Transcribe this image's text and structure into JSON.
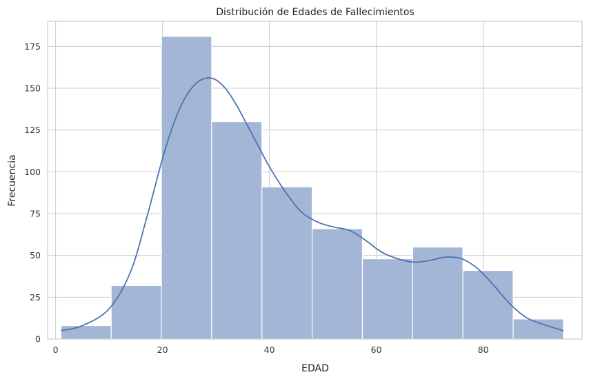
{
  "chart_data": {
    "type": "bar",
    "title": "Distribución de Edades de Fallecimientos",
    "xlabel": "EDAD",
    "ylabel": "Frecuencia",
    "xlim": [
      -1.5,
      98.5
    ],
    "ylim": [
      0,
      190
    ],
    "x_ticks": [
      0,
      20,
      40,
      60,
      80
    ],
    "y_ticks": [
      0,
      25,
      50,
      75,
      100,
      125,
      150,
      175
    ],
    "grid": true,
    "bin_edges": [
      1,
      10.4,
      19.8,
      29.2,
      38.6,
      48,
      57.4,
      66.8,
      76.2,
      85.6,
      95
    ],
    "counts": [
      8,
      32,
      181,
      130,
      91,
      66,
      48,
      55,
      41,
      12
    ],
    "kde": {
      "x": [
        1,
        5,
        10,
        14,
        17,
        20,
        22,
        24,
        26,
        28,
        30,
        32,
        34,
        36,
        38,
        40,
        43,
        46,
        49,
        52,
        55,
        58,
        61,
        64,
        67,
        70,
        73,
        76,
        79,
        82,
        85,
        88,
        91,
        95
      ],
      "y": [
        5,
        8,
        18,
        40,
        72,
        108,
        128,
        143,
        152,
        156,
        155,
        149,
        139,
        127,
        115,
        103,
        88,
        76,
        70,
        67,
        65,
        59,
        52,
        48,
        46,
        47,
        49,
        48,
        42,
        32,
        21,
        13,
        9,
        5
      ]
    },
    "colors": {
      "bar": "#a3b6d6",
      "line": "#4c72b0"
    }
  }
}
